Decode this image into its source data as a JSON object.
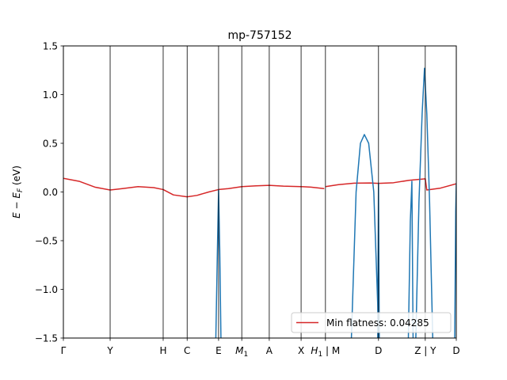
{
  "chart_data": {
    "type": "line",
    "title": "mp-757152",
    "xlabel": "",
    "ylabel_main": "E − E",
    "ylabel_sub": "F",
    "ylabel_unit": " (eV)",
    "ylim": [
      -1.5,
      1.5
    ],
    "xlim": [
      0,
      100
    ],
    "yticks": [
      {
        "value": 1.5,
        "label": "1.5"
      },
      {
        "value": 1.0,
        "label": "1.0"
      },
      {
        "value": 0.5,
        "label": "0.5"
      },
      {
        "value": 0.0,
        "label": "0.0"
      },
      {
        "value": -0.5,
        "label": "−0.5"
      },
      {
        "value": -1.0,
        "label": "−1.0"
      },
      {
        "value": -1.5,
        "label": "−1.5"
      }
    ],
    "xticks": [
      {
        "pos": 0.0,
        "label": "Γ"
      },
      {
        "pos": 11.9,
        "label": "Y"
      },
      {
        "pos": 25.4,
        "label": "H"
      },
      {
        "pos": 31.5,
        "label": "C"
      },
      {
        "pos": 39.5,
        "label": "E"
      },
      {
        "pos": 45.4,
        "label": "M",
        "sub": "1"
      },
      {
        "pos": 52.4,
        "label": "A"
      },
      {
        "pos": 60.5,
        "label": "X"
      },
      {
        "pos": 66.7,
        "label": "H",
        "sub": "1",
        "suffix": " | M"
      },
      {
        "pos": 80.2,
        "label": "D"
      },
      {
        "pos": 92.1,
        "label": "Z | Y"
      },
      {
        "pos": 100.0,
        "label": "D"
      }
    ],
    "legend": {
      "label": "Min flatness: 0.04285",
      "placement": "lower-right"
    },
    "series": [
      {
        "color": "#d62728",
        "segments": [
          {
            "x": [
              0,
              4,
              8,
              11.9,
              15,
              19,
              23,
              25.4,
              28,
              31.5,
              34,
              37,
              39.5,
              42,
              45.4,
              49,
              52.4,
              56,
              60.5,
              63,
              66.4
            ],
            "y": [
              0.14,
              0.11,
              0.05,
              0.02,
              0.035,
              0.055,
              0.045,
              0.025,
              -0.03,
              -0.05,
              -0.035,
              0.0,
              0.025,
              0.035,
              0.055,
              0.063,
              0.068,
              0.06,
              0.055,
              0.05,
              0.035
            ]
          },
          {
            "x": [
              66.7,
              70,
              74,
              78,
              80.2,
              84,
              88,
              92.1,
              92.5,
              96,
              100
            ],
            "y": [
              0.055,
              0.075,
              0.09,
              0.092,
              0.088,
              0.095,
              0.12,
              0.135,
              0.02,
              0.04,
              0.085
            ]
          }
        ]
      },
      {
        "color": "#1f77b4",
        "segments": [
          {
            "x": [
              38.8,
              39.2,
              39.5,
              39.8,
              40.1
            ],
            "y": [
              -1.5,
              -0.6,
              0.02,
              -0.6,
              -1.5
            ]
          },
          {
            "x": [
              73.3,
              74.5,
              75.6,
              76.6,
              77.7,
              79,
              80.3
            ],
            "y": [
              -1.5,
              0.0,
              0.5,
              0.59,
              0.5,
              0.0,
              -1.5
            ]
          },
          {
            "x": [
              80.0,
              80.2,
              80.4
            ],
            "y": [
              -1.5,
              0.09,
              -1.5
            ]
          },
          {
            "x": [
              87.8,
              88.3,
              88.7,
              89.0
            ],
            "y": [
              -1.5,
              -0.3,
              0.11,
              -1.5
            ]
          },
          {
            "x": [
              89.7,
              90.5,
              91.3,
              91.9,
              92.5,
              93.2,
              94.0
            ],
            "y": [
              -1.5,
              -0.1,
              0.8,
              1.27,
              0.8,
              -0.1,
              -1.5
            ]
          },
          {
            "x": [
              99.6,
              99.85,
              100.0
            ],
            "y": [
              -1.5,
              -0.2,
              0.09
            ]
          }
        ]
      }
    ]
  }
}
